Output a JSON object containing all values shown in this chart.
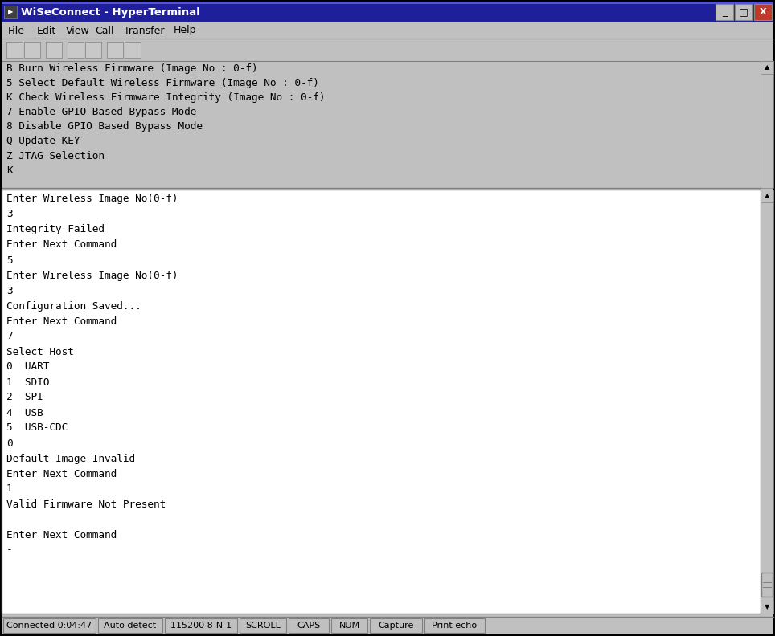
{
  "title_bar": "WiSeConnect - HyperTerminal",
  "menu_items": [
    "File",
    "Edit",
    "View",
    "Call",
    "Transfer",
    "Help"
  ],
  "top_text_lines": [
    "B Burn Wireless Firmware (Image No : 0-f)",
    "5 Select Default Wireless Firmware (Image No : 0-f)",
    "K Check Wireless Firmware Integrity (Image No : 0-f)",
    "7 Enable GPIO Based Bypass Mode",
    "8 Disable GPIO Based Bypass Mode",
    "Q Update KEY",
    "Z JTAG Selection",
    "K"
  ],
  "terminal_lines": [
    "Enter Wireless Image No(0-f)",
    "3",
    "Integrity Failed",
    "Enter Next Command",
    "5",
    "Enter Wireless Image No(0-f)",
    "3",
    "Configuration Saved...",
    "Enter Next Command",
    "7",
    "Select Host",
    "0  UART",
    "1  SDIO",
    "2  SPI",
    "4  USB",
    "5  USB-CDC",
    "0",
    "Default Image Invalid",
    "Enter Next Command",
    "1",
    "Valid Firmware Not Present",
    "",
    "Enter Next Command",
    "-"
  ],
  "status_bar_items": [
    "Connected 0:04:47",
    "Auto detect",
    "115200 8-N-1",
    "SCROLL",
    "CAPS",
    "NUM",
    "Capture",
    "Print echo"
  ],
  "status_widths": [
    115,
    80,
    90,
    58,
    50,
    45,
    65,
    75
  ],
  "bg_color": "#c0c0c0",
  "titlebar_bg_top": "#1a1a8c",
  "titlebar_bg_bot": "#4444cc",
  "titlebar_text_color": "#ffffff",
  "terminal_bg": "#ffffff",
  "terminal_text_color": "#000000",
  "top_text_color": "#000000",
  "font_size": 9.2,
  "menu_font_size": 9.0,
  "status_font_size": 8.0,
  "fig_width": 9.64,
  "fig_height": 7.92,
  "dpi": 100
}
